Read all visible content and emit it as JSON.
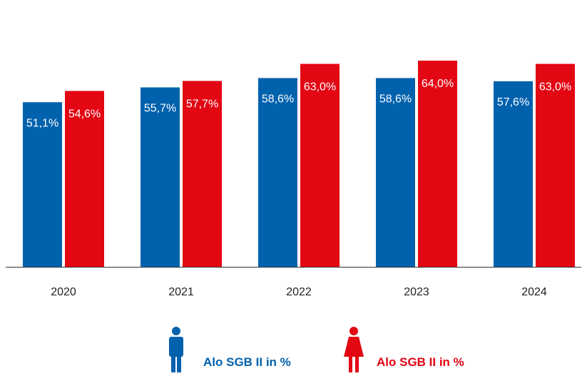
{
  "chart_data": {
    "type": "bar",
    "categories": [
      "2020",
      "2021",
      "2022",
      "2023",
      "2024"
    ],
    "series": [
      {
        "values": [
          51.1,
          55.7,
          58.6,
          58.6,
          57.6
        ],
        "labels": [
          "51,1%",
          "55,7%",
          "58,6%",
          "58,6%",
          "57,6%"
        ],
        "color": "#0061ad"
      },
      {
        "values": [
          54.6,
          57.7,
          63.0,
          64.0,
          63.0
        ],
        "labels": [
          "54,6%",
          "57,7%",
          "63,0%",
          "64,0%",
          "63,0%"
        ],
        "color": "#e30613"
      }
    ],
    "ylim": [
      0,
      64
    ],
    "grid": false,
    "legend_position": "bottom-center"
  },
  "legend": [
    {
      "label": "Alo SGB II in %",
      "icon": "male-person-icon",
      "color": "#0061ad"
    },
    {
      "label": "Alo SGB II in %",
      "icon": "female-person-icon",
      "color": "#e30613"
    }
  ]
}
